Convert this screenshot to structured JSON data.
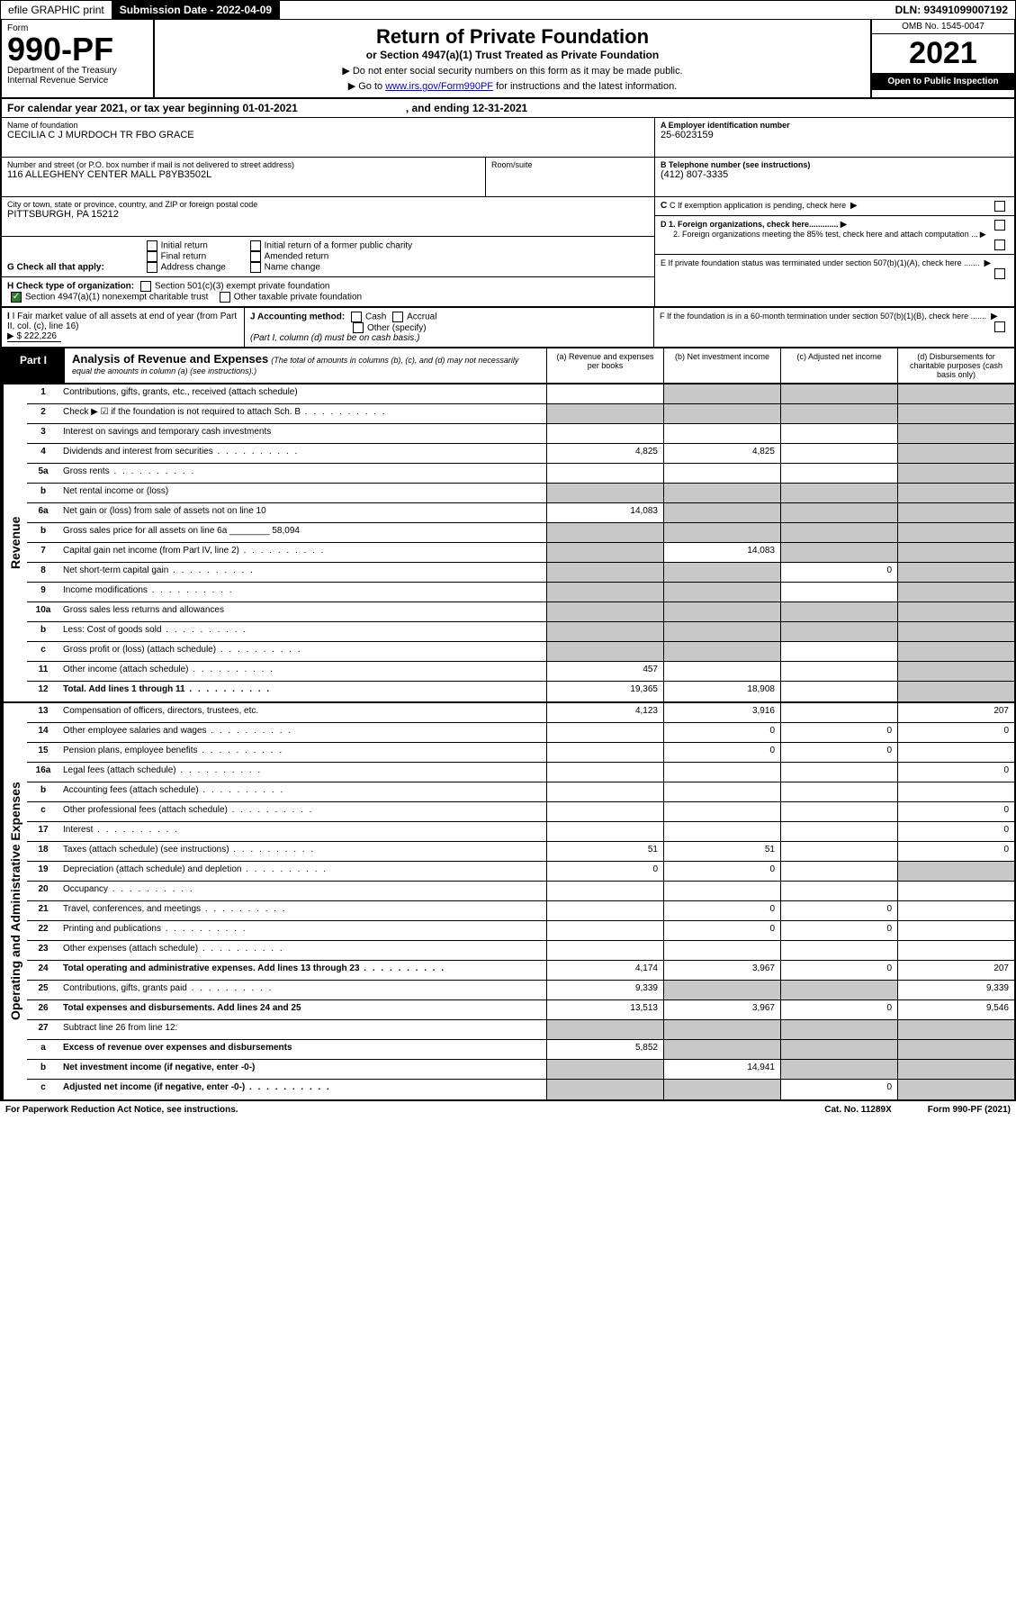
{
  "top": {
    "efile": "efile GRAPHIC print",
    "sub_date_label": "Submission Date - 2022-04-09",
    "dln": "DLN: 93491099007192"
  },
  "header": {
    "form_label": "Form",
    "form_num_big": "990-PF",
    "dept": "Department of the Treasury",
    "irs": "Internal Revenue Service",
    "title": "Return of Private Foundation",
    "subtitle": "or Section 4947(a)(1) Trust Treated as Private Foundation",
    "instr1": "▶ Do not enter social security numbers on this form as it may be made public.",
    "instr2_pre": "▶ Go to ",
    "instr2_link": "www.irs.gov/Form990PF",
    "instr2_post": " for instructions and the latest information.",
    "omb": "OMB No. 1545-0047",
    "year": "2021",
    "open": "Open to Public Inspection"
  },
  "cal_year": {
    "text": "For calendar year 2021, or tax year beginning 01-01-2021",
    "ending": ", and ending 12-31-2021"
  },
  "info": {
    "name_label": "Name of foundation",
    "name": "CECILIA C J MURDOCH TR FBO GRACE",
    "addr_label": "Number and street (or P.O. box number if mail is not delivered to street address)",
    "addr": "116 ALLEGHENY CENTER MALL P8YB3502L",
    "room_label": "Room/suite",
    "city_label": "City or town, state or province, country, and ZIP or foreign postal code",
    "city": "PITTSBURGH, PA  15212",
    "ein_label": "A Employer identification number",
    "ein": "25-6023159",
    "phone_label": "B Telephone number (see instructions)",
    "phone": "(412) 807-3335",
    "c_label": "C If exemption application is pending, check here",
    "d1": "D 1. Foreign organizations, check here.............",
    "d2": "2. Foreign organizations meeting the 85% test, check here and attach computation ...",
    "e_label": "E  If private foundation status was terminated under section 507(b)(1)(A), check here .......",
    "f_label": "F  If the foundation is in a 60-month termination under section 507(b)(1)(B), check here ......."
  },
  "g": {
    "label": "G Check all that apply:",
    "opts": [
      "Initial return",
      "Final return",
      "Address change",
      "Initial return of a former public charity",
      "Amended return",
      "Name change"
    ]
  },
  "h": {
    "label": "H Check type of organization:",
    "o1": "Section 501(c)(3) exempt private foundation",
    "o2": "Section 4947(a)(1) nonexempt charitable trust",
    "o3": "Other taxable private foundation"
  },
  "i": {
    "label": "I Fair market value of all assets at end of year (from Part II, col. (c), line 16)",
    "value": "▶ $  222,226"
  },
  "j": {
    "label": "J Accounting method:",
    "cash": "Cash",
    "accrual": "Accrual",
    "other": "Other (specify)",
    "note": "(Part I, column (d) must be on cash basis.)"
  },
  "part1": {
    "label": "Part I",
    "title": "Analysis of Revenue and Expenses",
    "note": "(The total of amounts in columns (b), (c), and (d) may not necessarily equal the amounts in column (a) (see instructions).)",
    "col_a": "(a)   Revenue and expenses per books",
    "col_b": "(b)   Net investment income",
    "col_c": "(c)   Adjusted net income",
    "col_d": "(d)  Disbursements for charitable purposes (cash basis only)"
  },
  "side": {
    "revenue": "Revenue",
    "expenses": "Operating and Administrative Expenses"
  },
  "rows": [
    {
      "ln": "1",
      "desc": "Contributions, gifts, grants, etc., received (attach schedule)",
      "a": "",
      "b": "g",
      "c": "g",
      "d": "g"
    },
    {
      "ln": "2",
      "desc": "Check ▶ ☑ if the foundation is not required to attach Sch. B",
      "dots": true,
      "a": "g",
      "b": "g",
      "c": "g",
      "d": "g"
    },
    {
      "ln": "3",
      "desc": "Interest on savings and temporary cash investments",
      "a": "",
      "b": "",
      "c": "",
      "d": "g"
    },
    {
      "ln": "4",
      "desc": "Dividends and interest from securities",
      "dots": true,
      "a": "4,825",
      "b": "4,825",
      "c": "",
      "d": "g"
    },
    {
      "ln": "5a",
      "desc": "Gross rents",
      "dots": true,
      "a": "",
      "b": "",
      "c": "",
      "d": "g"
    },
    {
      "ln": "b",
      "desc": "Net rental income or (loss)",
      "a": "g",
      "b": "g",
      "c": "g",
      "d": "g"
    },
    {
      "ln": "6a",
      "desc": "Net gain or (loss) from sale of assets not on line 10",
      "a": "14,083",
      "b": "g",
      "c": "g",
      "d": "g"
    },
    {
      "ln": "b",
      "desc": "Gross sales price for all assets on line 6a ________ 58,094",
      "a": "g",
      "b": "g",
      "c": "g",
      "d": "g"
    },
    {
      "ln": "7",
      "desc": "Capital gain net income (from Part IV, line 2)",
      "dots": true,
      "a": "g",
      "b": "14,083",
      "c": "g",
      "d": "g"
    },
    {
      "ln": "8",
      "desc": "Net short-term capital gain",
      "dots": true,
      "a": "g",
      "b": "g",
      "c": "0",
      "d": "g"
    },
    {
      "ln": "9",
      "desc": "Income modifications",
      "dots": true,
      "a": "g",
      "b": "g",
      "c": "",
      "d": "g"
    },
    {
      "ln": "10a",
      "desc": "Gross sales less returns and allowances",
      "a": "g",
      "b": "g",
      "c": "g",
      "d": "g"
    },
    {
      "ln": "b",
      "desc": "Less: Cost of goods sold",
      "dots": true,
      "a": "g",
      "b": "g",
      "c": "g",
      "d": "g"
    },
    {
      "ln": "c",
      "desc": "Gross profit or (loss) (attach schedule)",
      "dots": true,
      "a": "g",
      "b": "g",
      "c": "",
      "d": "g"
    },
    {
      "ln": "11",
      "desc": "Other income (attach schedule)",
      "dots": true,
      "a": "457",
      "b": "",
      "c": "",
      "d": "g"
    },
    {
      "ln": "12",
      "desc": "Total. Add lines 1 through 11",
      "dots": true,
      "bold": true,
      "a": "19,365",
      "b": "18,908",
      "c": "",
      "d": "g"
    }
  ],
  "rows2": [
    {
      "ln": "13",
      "desc": "Compensation of officers, directors, trustees, etc.",
      "a": "4,123",
      "b": "3,916",
      "c": "",
      "d": "207"
    },
    {
      "ln": "14",
      "desc": "Other employee salaries and wages",
      "dots": true,
      "a": "",
      "b": "0",
      "c": "0",
      "d": "0"
    },
    {
      "ln": "15",
      "desc": "Pension plans, employee benefits",
      "dots": true,
      "a": "",
      "b": "0",
      "c": "0",
      "d": ""
    },
    {
      "ln": "16a",
      "desc": "Legal fees (attach schedule)",
      "dots": true,
      "a": "",
      "b": "",
      "c": "",
      "d": "0"
    },
    {
      "ln": "b",
      "desc": "Accounting fees (attach schedule)",
      "dots": true,
      "a": "",
      "b": "",
      "c": "",
      "d": ""
    },
    {
      "ln": "c",
      "desc": "Other professional fees (attach schedule)",
      "dots": true,
      "a": "",
      "b": "",
      "c": "",
      "d": "0"
    },
    {
      "ln": "17",
      "desc": "Interest",
      "dots": true,
      "a": "",
      "b": "",
      "c": "",
      "d": "0"
    },
    {
      "ln": "18",
      "desc": "Taxes (attach schedule) (see instructions)",
      "dots": true,
      "a": "51",
      "b": "51",
      "c": "",
      "d": "0"
    },
    {
      "ln": "19",
      "desc": "Depreciation (attach schedule) and depletion",
      "dots": true,
      "a": "0",
      "b": "0",
      "c": "",
      "d": "g"
    },
    {
      "ln": "20",
      "desc": "Occupancy",
      "dots": true,
      "a": "",
      "b": "",
      "c": "",
      "d": ""
    },
    {
      "ln": "21",
      "desc": "Travel, conferences, and meetings",
      "dots": true,
      "a": "",
      "b": "0",
      "c": "0",
      "d": ""
    },
    {
      "ln": "22",
      "desc": "Printing and publications",
      "dots": true,
      "a": "",
      "b": "0",
      "c": "0",
      "d": ""
    },
    {
      "ln": "23",
      "desc": "Other expenses (attach schedule)",
      "dots": true,
      "a": "",
      "b": "",
      "c": "",
      "d": ""
    },
    {
      "ln": "24",
      "desc": "Total operating and administrative expenses. Add lines 13 through 23",
      "dots": true,
      "bold": true,
      "a": "4,174",
      "b": "3,967",
      "c": "0",
      "d": "207"
    },
    {
      "ln": "25",
      "desc": "Contributions, gifts, grants paid",
      "dots": true,
      "a": "9,339",
      "b": "g",
      "c": "g",
      "d": "9,339"
    },
    {
      "ln": "26",
      "desc": "Total expenses and disbursements. Add lines 24 and 25",
      "bold": true,
      "a": "13,513",
      "b": "3,967",
      "c": "0",
      "d": "9,546"
    },
    {
      "ln": "27",
      "desc": "Subtract line 26 from line 12:",
      "a": "g",
      "b": "g",
      "c": "g",
      "d": "g"
    },
    {
      "ln": "a",
      "desc": "Excess of revenue over expenses and disbursements",
      "bold": true,
      "a": "5,852",
      "b": "g",
      "c": "g",
      "d": "g"
    },
    {
      "ln": "b",
      "desc": "Net investment income (if negative, enter -0-)",
      "bold": true,
      "a": "g",
      "b": "14,941",
      "c": "g",
      "d": "g"
    },
    {
      "ln": "c",
      "desc": "Adjusted net income (if negative, enter -0-)",
      "dots": true,
      "bold": true,
      "a": "g",
      "b": "g",
      "c": "0",
      "d": "g"
    }
  ],
  "footer": {
    "l": "For Paperwork Reduction Act Notice, see instructions.",
    "m": "Cat. No. 11289X",
    "r": "Form 990-PF (2021)"
  }
}
